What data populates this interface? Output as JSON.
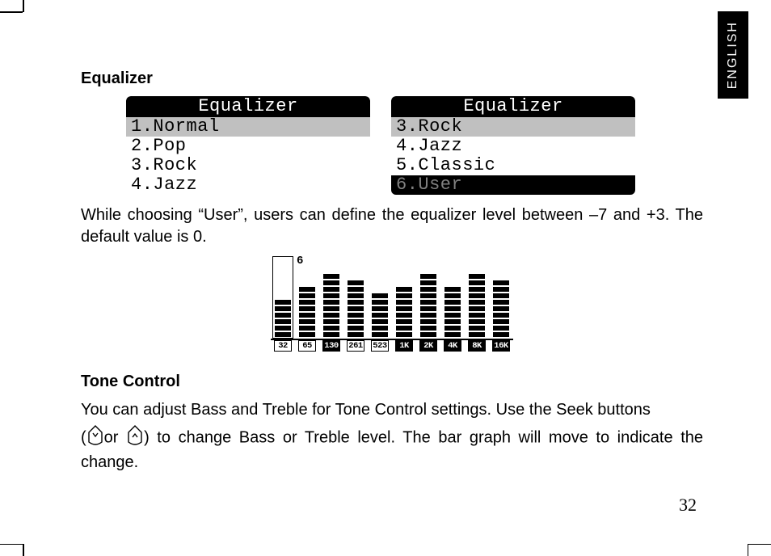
{
  "side_tab": "ENGLISH",
  "sections": {
    "equalizer_heading": "Equalizer",
    "tone_heading": "Tone Control"
  },
  "paragraphs": {
    "eq_user": "While choosing “User”, users can define the equalizer level between –7 and +3. The default value is 0.",
    "tone_p1": "You can adjust Bass and Treble for Tone Control settings. Use the Seek buttons",
    "tone_p2_open": "(",
    "tone_p2_mid": "or",
    "tone_p2_close": ") to change Bass or Treble level. The bar graph will move to indicate the change."
  },
  "lcd_left": {
    "title": "Equalizer",
    "rows": [
      {
        "text": "1.Normal",
        "style": "sel"
      },
      {
        "text": "2.Pop",
        "style": ""
      },
      {
        "text": "3.Rock",
        "style": ""
      },
      {
        "text": "4.Jazz",
        "style": ""
      }
    ]
  },
  "lcd_right": {
    "title": "Equalizer",
    "rows": [
      {
        "text": "3.Rock",
        "style": "sel"
      },
      {
        "text": "4.Jazz",
        "style": ""
      },
      {
        "text": "5.Classic",
        "style": ""
      },
      {
        "text": "6.User",
        "style": "dark-faint"
      }
    ]
  },
  "eq_graphic": {
    "selected_value_label": "6",
    "selected_index": 0,
    "band_labels": [
      "32",
      "65",
      "130",
      "261",
      "523",
      "1K",
      "2K",
      "4K",
      "8K",
      "16K"
    ],
    "label_inverted": [
      false,
      false,
      true,
      false,
      false,
      true,
      true,
      true,
      true,
      true
    ],
    "segment_counts": [
      6,
      8,
      10,
      9,
      7,
      8,
      10,
      8,
      10,
      9
    ]
  },
  "page_number": "32"
}
